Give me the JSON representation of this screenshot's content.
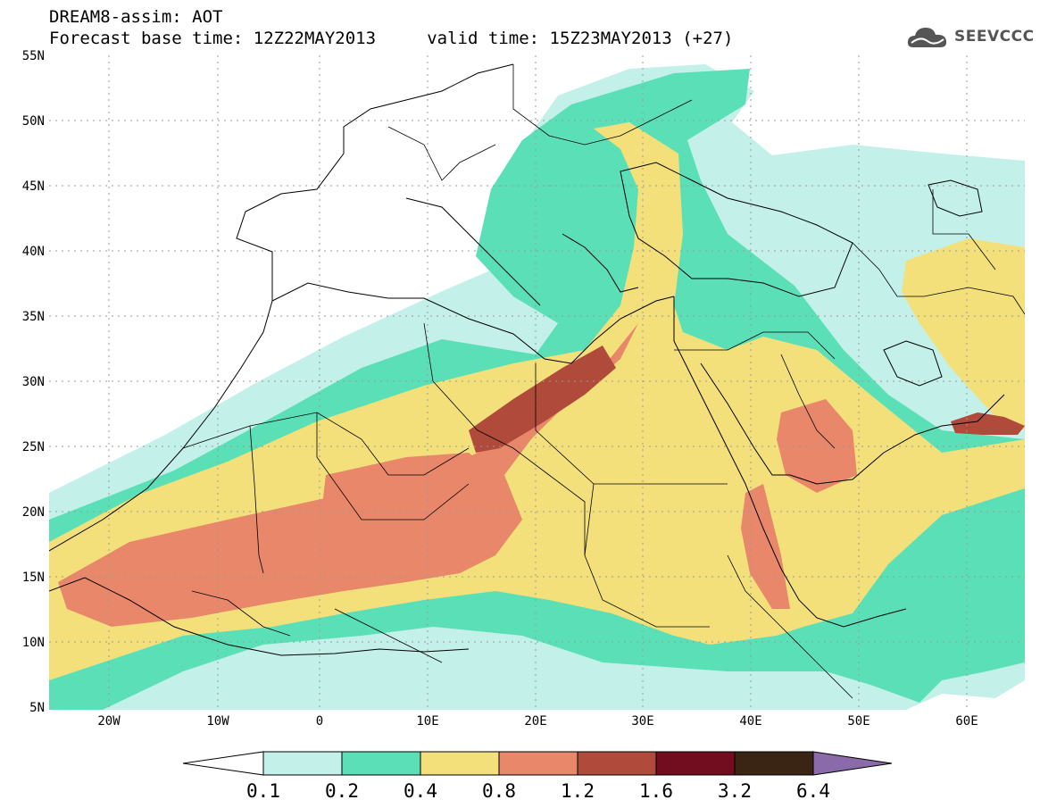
{
  "title_line1": "DREAM8-assim: AOT",
  "title_line2": "Forecast base time: 12Z22MAY2013     valid time: 15Z23MAY2013 (+27)",
  "logo_text": "SEEVCCC",
  "lat_labels": [
    "55N",
    "50N",
    "45N",
    "40N",
    "35N",
    "30N",
    "25N",
    "20N",
    "15N",
    "10N",
    "5N"
  ],
  "lon_labels": [
    "20W",
    "10W",
    "0",
    "10E",
    "20E",
    "30E",
    "40E",
    "50E",
    "60E"
  ],
  "colorbar": {
    "levels": [
      "0.1",
      "0.2",
      "0.4",
      "0.8",
      "1.2",
      "1.6",
      "3.2",
      "6.4"
    ],
    "colors": [
      "#c4f0ea",
      "#5bdfb7",
      "#f3e07a",
      "#e8876a",
      "#b04a3a",
      "#720d20",
      "#3a2414",
      "#8a6aa8"
    ]
  },
  "map_colors": {
    "c1": "#c4f0ea",
    "c2": "#5bdfb7",
    "c3": "#f3e07a",
    "c4": "#e8876a",
    "c5": "#b04a3a",
    "border": "#000000",
    "grid": "#9a9a9a"
  }
}
